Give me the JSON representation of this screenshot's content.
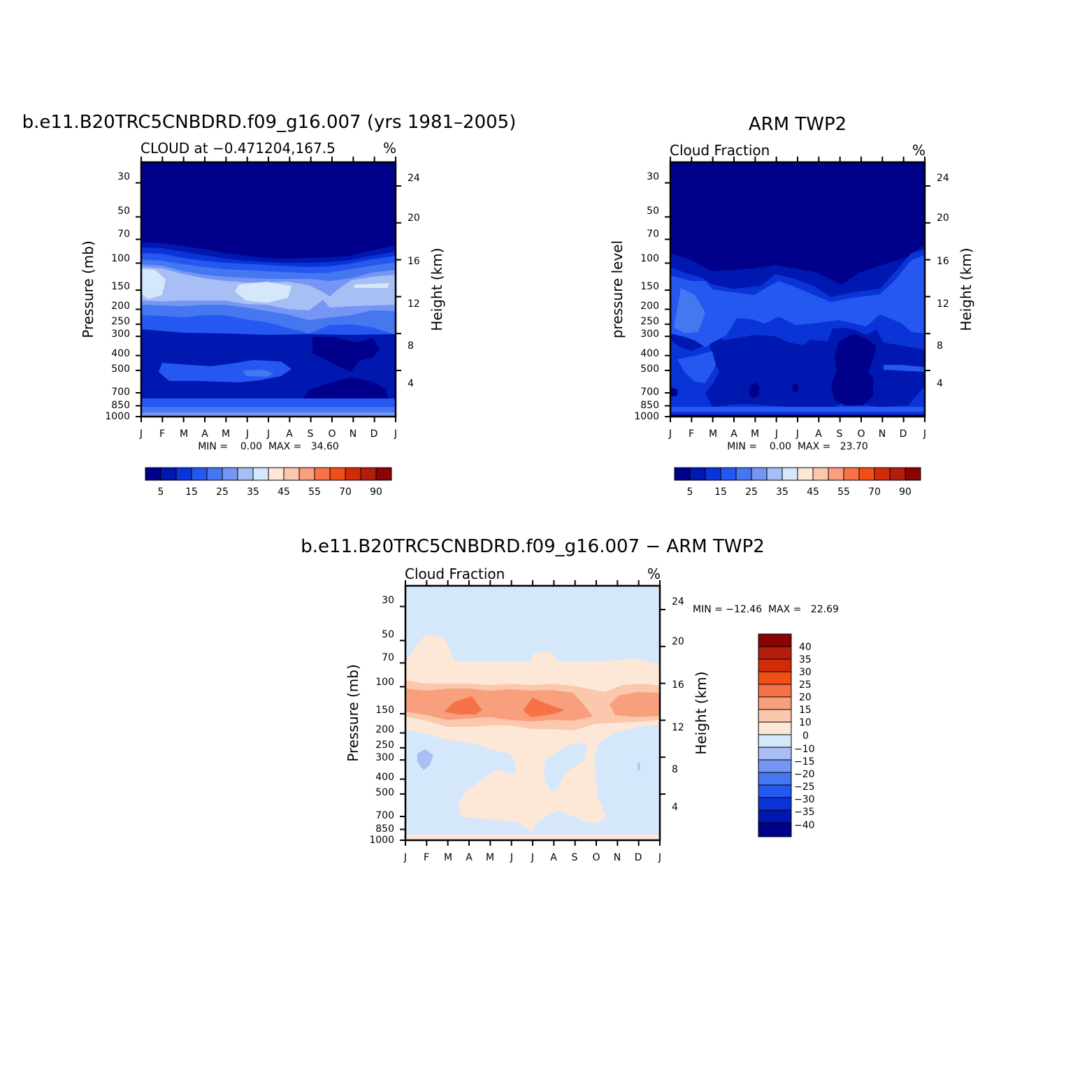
{
  "chart_data": [
    {
      "type": "heatmap",
      "panel": "model",
      "main_title": "b.e11.B20TRC5CNBDRD.f09_g16.007 (yrs 1981–2005)",
      "left_string": "CLOUD at −0.471204,167.5",
      "right_string": "%",
      "ylabel": "Pressure (mb)",
      "y2label": "Height (km)",
      "minmax": "MIN =    0.00  MAX =   34.60",
      "months": [
        "J",
        "F",
        "M",
        "A",
        "M",
        "J",
        "J",
        "A",
        "S",
        "O",
        "N",
        "D",
        "J"
      ],
      "pressure_ticks": [
        "30",
        "50",
        "70",
        "100",
        "150",
        "200",
        "250",
        "300",
        "400",
        "500",
        "700",
        "850",
        "1000"
      ],
      "pressure_values": [
        30,
        50,
        70,
        100,
        150,
        200,
        250,
        300,
        400,
        500,
        700,
        850,
        1000
      ],
      "height_ticks": [
        "24",
        "20",
        "16",
        "12",
        "8",
        "4"
      ],
      "height_values": [
        24,
        20,
        16,
        12,
        8,
        4
      ],
      "summary": {
        "min": 0.0,
        "max": 34.6,
        "units": "%"
      },
      "colorbar": {
        "labels": [
          "5",
          "15",
          "25",
          "35",
          "45",
          "55",
          "70",
          "90"
        ],
        "colors": [
          "#00008b",
          "#0018b0",
          "#0b34d8",
          "#2458f0",
          "#4577f0",
          "#7596f4",
          "#a8bff6",
          "#d5e7fb",
          "#fde8d8",
          "#fbc8ad",
          "#f8a07e",
          "#f77347",
          "#f24e18",
          "#d02c08",
          "#b31d0c",
          "#8a0404"
        ]
      }
    },
    {
      "type": "heatmap",
      "panel": "observation",
      "main_title": "ARM TWP2",
      "left_string": "Cloud Fraction",
      "right_string": "%",
      "ylabel": "pressure level",
      "y2label": "Height (km)",
      "minmax": "MIN =    0.00  MAX =   23.70",
      "months": [
        "J",
        "F",
        "M",
        "A",
        "M",
        "J",
        "J",
        "A",
        "S",
        "O",
        "N",
        "D",
        "J"
      ],
      "pressure_ticks": [
        "30",
        "50",
        "70",
        "100",
        "150",
        "200",
        "250",
        "300",
        "400",
        "500",
        "700",
        "850",
        "1000"
      ],
      "pressure_values": [
        30,
        50,
        70,
        100,
        150,
        200,
        250,
        300,
        400,
        500,
        700,
        850,
        1000
      ],
      "height_ticks": [
        "24",
        "20",
        "16",
        "12",
        "8",
        "4"
      ],
      "height_values": [
        24,
        20,
        16,
        12,
        8,
        4
      ],
      "summary": {
        "min": 0.0,
        "max": 23.7,
        "units": "%"
      },
      "colorbar": {
        "labels": [
          "5",
          "15",
          "25",
          "35",
          "45",
          "55",
          "70",
          "90"
        ],
        "colors": [
          "#00008b",
          "#0018b0",
          "#0b34d8",
          "#2458f0",
          "#4577f0",
          "#7596f4",
          "#a8bff6",
          "#d5e7fb",
          "#fde8d8",
          "#fbc8ad",
          "#f8a07e",
          "#f77347",
          "#f24e18",
          "#d02c08",
          "#b31d0c",
          "#8a0404"
        ]
      }
    },
    {
      "type": "heatmap",
      "panel": "difference",
      "main_title": "b.e11.B20TRC5CNBDRD.f09_g16.007 − ARM TWP2",
      "left_string": "Cloud Fraction",
      "right_string": "%",
      "ylabel": "Pressure (mb)",
      "y2label": "Height (km)",
      "minmax": "MIN = −12.46  MAX =   22.69",
      "months": [
        "J",
        "F",
        "M",
        "A",
        "M",
        "J",
        "J",
        "A",
        "S",
        "O",
        "N",
        "D",
        "J"
      ],
      "pressure_ticks": [
        "30",
        "50",
        "70",
        "100",
        "150",
        "200",
        "250",
        "300",
        "400",
        "500",
        "700",
        "850",
        "1000"
      ],
      "pressure_values": [
        30,
        50,
        70,
        100,
        150,
        200,
        250,
        300,
        400,
        500,
        700,
        850,
        1000
      ],
      "height_ticks": [
        "24",
        "20",
        "16",
        "12",
        "8",
        "4"
      ],
      "height_values": [
        24,
        20,
        16,
        12,
        8,
        4
      ],
      "summary": {
        "min": -12.46,
        "max": 22.69,
        "units": "%"
      },
      "colorbar": {
        "labels": [
          "40",
          "35",
          "30",
          "25",
          "20",
          "15",
          "10",
          "0",
          "−10",
          "−15",
          "−20",
          "−25",
          "−30",
          "−35",
          "−40"
        ],
        "colors": [
          "#8a0404",
          "#b31d0c",
          "#d02c08",
          "#f24e18",
          "#f77347",
          "#f8a07e",
          "#fbc8ad",
          "#fde8d8",
          "#d5e7fb",
          "#a8bff6",
          "#7596f4",
          "#4577f0",
          "#2458f0",
          "#0b34d8",
          "#0018b0",
          "#00008b"
        ]
      }
    }
  ],
  "colors": {
    "c0": "#00008b",
    "c1": "#0018b0",
    "c2": "#0b34d8",
    "c3": "#2458f0",
    "c4": "#4577f0",
    "c5": "#7596f4",
    "c6": "#a8bff6",
    "c7": "#d5e7fb",
    "c8": "#fde8d8",
    "c9": "#fbc8ad",
    "c10": "#f8a07e",
    "c11": "#f77347"
  }
}
